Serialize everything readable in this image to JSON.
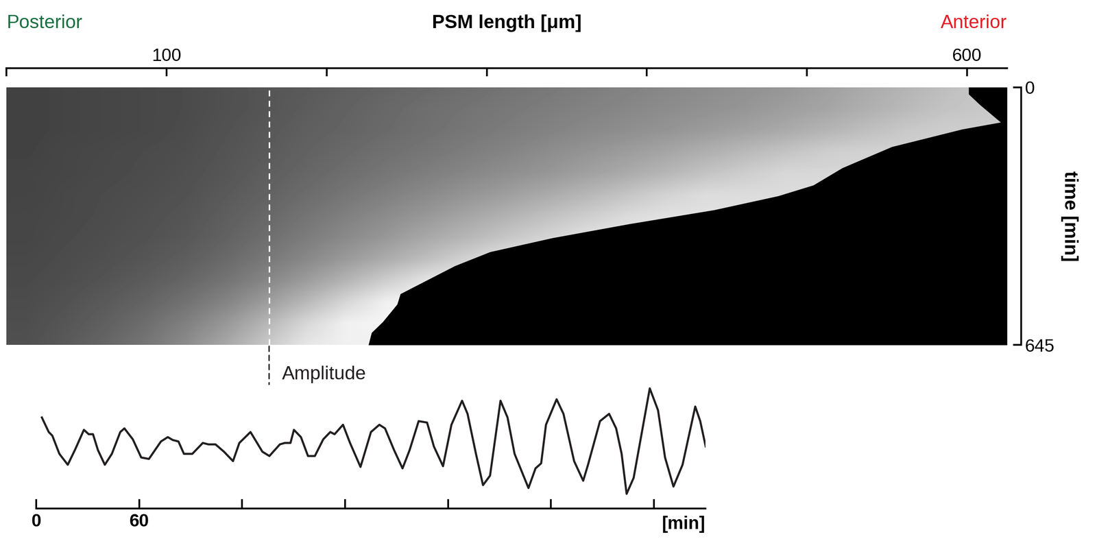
{
  "chart_data": [
    {
      "type": "heatmap",
      "x_label": "PSM length [μm]",
      "y_label": "time [min]",
      "annotations": [
        {
          "text": "Posterior",
          "color": "#1a7040"
        },
        {
          "text": "Anterior",
          "color": "#e41e26"
        },
        {
          "text": "Amplitude",
          "color": "#231f20"
        }
      ],
      "xlim": [
        0,
        625
      ],
      "xticks": [
        {
          "value": 0,
          "label": null
        },
        100,
        {
          "value": 200,
          "label": null
        },
        {
          "value": 300,
          "label": null
        },
        {
          "value": 400,
          "label": null
        },
        {
          "value": 500,
          "label": null
        },
        600
      ],
      "ylim": [
        645,
        0
      ],
      "yticks": [
        0,
        645
      ],
      "amplitude_position": 164,
      "heatmap": {
        "x": [
          12.5,
          37.5,
          62.5,
          87.5,
          112.5,
          137.5,
          162.5,
          187.5,
          212.5,
          237.5,
          262.5,
          287.5,
          312.5,
          337.5,
          362.5,
          387.5,
          412.5,
          437.5,
          462.5,
          487.5,
          512.5,
          537.5,
          562.5,
          587.5,
          612.5
        ],
        "y": [
          0,
          53.75,
          107.5,
          161.25,
          215,
          268.75,
          322.5,
          376.25,
          430,
          483.75,
          537.5,
          591.25,
          645
        ],
        "range": [
          0,
          255
        ],
        "cells": [
          [
            65,
            68,
            70,
            72,
            75,
            80,
            85,
            90,
            95,
            100,
            105,
            110,
            115,
            120,
            125,
            130,
            135,
            140,
            145,
            150,
            160,
            170,
            180,
            190,
            200
          ],
          [
            65,
            68,
            70,
            72,
            75,
            80,
            85,
            92,
            98,
            104,
            110,
            115,
            120,
            125,
            130,
            135,
            140,
            145,
            150,
            158,
            165,
            175,
            185,
            195,
            200
          ],
          [
            65,
            68,
            70,
            72,
            76,
            82,
            88,
            95,
            100,
            106,
            112,
            118,
            124,
            130,
            136,
            142,
            148,
            155,
            162,
            170,
            180,
            190,
            200,
            205,
            205
          ],
          [
            66,
            70,
            72,
            75,
            78,
            84,
            90,
            98,
            105,
            112,
            118,
            125,
            132,
            140,
            148,
            156,
            165,
            175,
            185,
            195,
            205,
            210,
            210,
            210,
            210
          ],
          [
            68,
            70,
            73,
            76,
            80,
            86,
            94,
            102,
            110,
            118,
            126,
            134,
            142,
            150,
            160,
            170,
            182,
            195,
            205,
            215,
            215,
            215,
            215,
            215,
            215
          ],
          [
            68,
            72,
            75,
            78,
            82,
            90,
            98,
            108,
            118,
            128,
            138,
            148,
            158,
            170,
            182,
            196,
            210,
            220,
            220,
            220,
            220,
            220,
            220,
            220,
            220
          ],
          [
            70,
            72,
            76,
            80,
            85,
            94,
            104,
            116,
            128,
            140,
            152,
            165,
            178,
            192,
            205,
            218,
            225,
            225,
            225,
            225,
            225,
            225,
            225,
            225,
            225
          ],
          [
            70,
            74,
            78,
            82,
            88,
            98,
            110,
            124,
            138,
            152,
            168,
            182,
            198,
            212,
            225,
            230,
            230,
            230,
            230,
            230,
            230,
            230,
            230,
            230,
            230
          ],
          [
            72,
            76,
            80,
            86,
            94,
            106,
            120,
            136,
            154,
            172,
            190,
            210,
            228,
            235,
            235,
            235,
            235,
            235,
            235,
            235,
            235,
            235,
            235,
            235,
            235
          ],
          [
            74,
            78,
            84,
            92,
            102,
            116,
            134,
            156,
            180,
            205,
            228,
            240,
            240,
            240,
            240,
            240,
            240,
            240,
            240,
            240,
            240,
            240,
            240,
            240,
            240
          ],
          [
            76,
            82,
            90,
            100,
            114,
            132,
            156,
            184,
            214,
            240,
            245,
            245,
            245,
            245,
            245,
            245,
            245,
            245,
            245,
            245,
            245,
            245,
            245,
            245,
            245
          ],
          [
            78,
            86,
            96,
            110,
            128,
            152,
            182,
            215,
            240,
            245,
            245,
            245,
            245,
            245,
            245,
            245,
            245,
            245,
            245,
            245,
            245,
            245,
            245,
            245,
            245
          ],
          [
            80,
            90,
            102,
            118,
            140,
            168,
            200,
            230,
            240,
            240,
            240,
            240,
            240,
            240,
            240,
            240,
            240,
            240,
            240,
            240,
            240,
            240,
            240,
            240,
            240
          ]
        ]
      },
      "boundary": {
        "time": [
          0,
          17.5,
          43.8,
          87.7,
          105,
          149,
          202,
          245,
          272,
          307,
          342,
          377,
          412,
          447,
          482,
          517,
          543,
          587,
          614,
          645
        ],
        "length": [
          601,
          601,
          608,
          621,
          597,
          553,
          522,
          504,
          482,
          442,
          389,
          341,
          302,
          280,
          263,
          246,
          244,
          235,
          228,
          226
        ]
      }
    },
    {
      "type": "line",
      "x_label": "[min]",
      "color": "#231f20",
      "tick_labels": "x",
      "xlim": [
        0,
        390
      ],
      "xticks": [
        0,
        60,
        {
          "value": 120,
          "label": null
        },
        {
          "value": 180,
          "label": null
        },
        {
          "value": 240,
          "label": null
        },
        {
          "value": 300,
          "label": null
        },
        {
          "value": 360,
          "label": null
        }
      ],
      "ylim": [
        -15,
        155
      ],
      "yticks": [],
      "x": [
        3.3,
        7.3,
        9.4,
        13.5,
        18.4,
        22.9,
        27.8,
        30.6,
        33.1,
        36.0,
        40.0,
        44.1,
        49.0,
        51.4,
        56.3,
        61.2,
        65.7,
        72.7,
        76.7,
        79.6,
        82.9,
        86.1,
        91.0,
        97.1,
        100.4,
        104.5,
        109.4,
        114.7,
        118.4,
        124.9,
        131.8,
        135.9,
        142.0,
        144.9,
        148.2,
        150.2,
        154.3,
        158.4,
        162.4,
        167.3,
        171.4,
        173.9,
        178.8,
        182.9,
        189.0,
        195.1,
        200.0,
        203.3,
        208.6,
        213.5,
        217.6,
        222.9,
        227.8,
        231.8,
        237.1,
        242.0,
        248.2,
        251.4,
        256.3,
        260.4,
        264.5,
        270.6,
        274.7,
        278.8,
        286.9,
        291.0,
        294.3,
        297.1,
        303.3,
        307.3,
        313.5,
        318.8,
        321.6,
        328.6,
        333.9,
        338.0,
        341.2,
        344.1,
        348.2,
        357.6,
        362.4,
        366.5,
        371.4,
        376.7,
        384.1,
        387.0,
        390.2
      ],
      "values": [
        110,
        90,
        85,
        60,
        45,
        67,
        93,
        87,
        87,
        65,
        45,
        60,
        90,
        95,
        80,
        55,
        53,
        77,
        83,
        79,
        77,
        60,
        60,
        75,
        73,
        73,
        63,
        50,
        75,
        90,
        63,
        57,
        73,
        75,
        75,
        93,
        83,
        57,
        57,
        80,
        90,
        87,
        100,
        75,
        42,
        90,
        100,
        95,
        65,
        40,
        65,
        105,
        103,
        70,
        43,
        100,
        133,
        115,
        60,
        17,
        30,
        133,
        110,
        60,
        13,
        40,
        47,
        100,
        135,
        115,
        50,
        23,
        45,
        105,
        115,
        95,
        60,
        5,
        27,
        150,
        120,
        55,
        15,
        45,
        125,
        105,
        70
      ]
    }
  ]
}
